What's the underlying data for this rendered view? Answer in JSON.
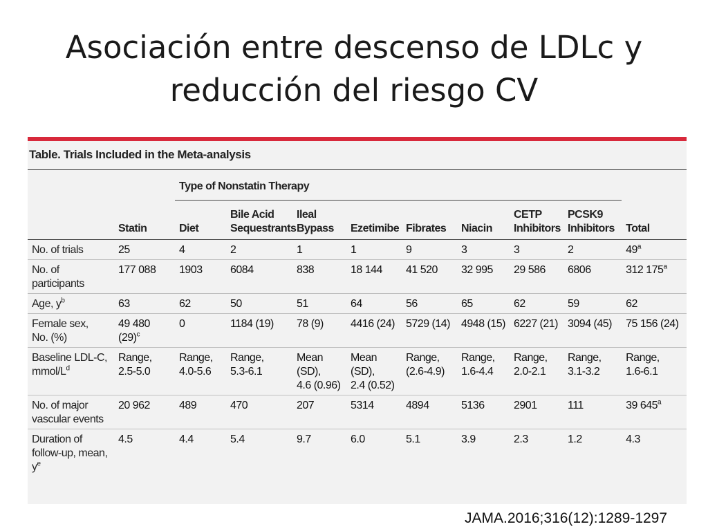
{
  "slide": {
    "title_line1": "Asociación entre descenso de LDLc y",
    "title_line2": "reducción del riesgo CV",
    "source": "JAMA.2016;316(12):1289-1297"
  },
  "table": {
    "caption": "Table. Trials Included in the Meta-analysis",
    "group_header": "Type of Nonstatin Therapy",
    "columns": [
      {
        "line1": "Statin",
        "line2": ""
      },
      {
        "line1": "Diet",
        "line2": ""
      },
      {
        "line1": "Bile Acid",
        "line2": "Sequestrants"
      },
      {
        "line1": "Ileal",
        "line2": "Bypass"
      },
      {
        "line1": "Ezetimibe",
        "line2": ""
      },
      {
        "line1": "Fibrates",
        "line2": ""
      },
      {
        "line1": "Niacin",
        "line2": ""
      },
      {
        "line1": "CETP",
        "line2": "Inhibitors"
      },
      {
        "line1": "PCSK9",
        "line2": "Inhibitors"
      },
      {
        "line1": "Total",
        "line2": ""
      }
    ],
    "rows": [
      {
        "label": [
          {
            "t": "No. of trials"
          }
        ],
        "cells": [
          [
            {
              "t": "25"
            }
          ],
          [
            {
              "t": "4"
            }
          ],
          [
            {
              "t": "2"
            }
          ],
          [
            {
              "t": "1"
            }
          ],
          [
            {
              "t": "1"
            }
          ],
          [
            {
              "t": "9"
            }
          ],
          [
            {
              "t": "3"
            }
          ],
          [
            {
              "t": "3"
            }
          ],
          [
            {
              "t": "2"
            }
          ],
          [
            {
              "t": "49"
            },
            {
              "t": "a",
              "sup": true
            }
          ]
        ]
      },
      {
        "label": [
          {
            "t": "No. of participants"
          }
        ],
        "cells": [
          [
            {
              "t": "177 088"
            }
          ],
          [
            {
              "t": "1903"
            }
          ],
          [
            {
              "t": "6084"
            }
          ],
          [
            {
              "t": "838"
            }
          ],
          [
            {
              "t": "18 144"
            }
          ],
          [
            {
              "t": "41 520"
            }
          ],
          [
            {
              "t": "32 995"
            }
          ],
          [
            {
              "t": "29 586"
            }
          ],
          [
            {
              "t": "6806"
            }
          ],
          [
            {
              "t": "312 175"
            },
            {
              "t": "a",
              "sup": true
            }
          ]
        ]
      },
      {
        "label": [
          {
            "t": "Age, y"
          },
          {
            "t": "b",
            "sup": true
          }
        ],
        "cells": [
          [
            {
              "t": "63"
            }
          ],
          [
            {
              "t": "62"
            }
          ],
          [
            {
              "t": "50"
            }
          ],
          [
            {
              "t": "51"
            }
          ],
          [
            {
              "t": "64"
            }
          ],
          [
            {
              "t": "56"
            }
          ],
          [
            {
              "t": "65"
            }
          ],
          [
            {
              "t": "62"
            }
          ],
          [
            {
              "t": "59"
            }
          ],
          [
            {
              "t": "62"
            }
          ]
        ]
      },
      {
        "label": [
          {
            "t": "Female sex,"
          },
          {
            "br": true
          },
          {
            "t": "No. (%)"
          }
        ],
        "cells": [
          [
            {
              "t": "49 480 (29)"
            },
            {
              "t": "c",
              "sup": true
            }
          ],
          [
            {
              "t": "0"
            }
          ],
          [
            {
              "t": "1184 (19)"
            }
          ],
          [
            {
              "t": "78 (9)"
            }
          ],
          [
            {
              "t": "4416 (24)"
            }
          ],
          [
            {
              "t": "5729 (14)"
            }
          ],
          [
            {
              "t": "4948 (15)"
            }
          ],
          [
            {
              "t": "6227 (21)"
            }
          ],
          [
            {
              "t": "3094 (45)"
            }
          ],
          [
            {
              "t": "75 156 (24)"
            }
          ]
        ]
      },
      {
        "label": [
          {
            "t": "Baseline LDL-C,"
          },
          {
            "br": true
          },
          {
            "t": "mmol/L"
          },
          {
            "t": "d",
            "sup": true
          }
        ],
        "cells": [
          [
            {
              "t": "Range,"
            },
            {
              "br": true
            },
            {
              "t": "2.5-5.0"
            }
          ],
          [
            {
              "t": "Range,"
            },
            {
              "br": true
            },
            {
              "t": "4.0-5.6"
            }
          ],
          [
            {
              "t": "Range,"
            },
            {
              "br": true
            },
            {
              "t": "5.3-6.1"
            }
          ],
          [
            {
              "t": "Mean (SD),"
            },
            {
              "br": true
            },
            {
              "t": "4.6 (0.96)"
            }
          ],
          [
            {
              "t": "Mean (SD),"
            },
            {
              "br": true
            },
            {
              "t": "2.4 (0.52)"
            }
          ],
          [
            {
              "t": "Range,"
            },
            {
              "br": true
            },
            {
              "t": "(2.6-4.9)"
            }
          ],
          [
            {
              "t": "Range,"
            },
            {
              "br": true
            },
            {
              "t": "1.6-4.4"
            }
          ],
          [
            {
              "t": "Range,"
            },
            {
              "br": true
            },
            {
              "t": "2.0-2.1"
            }
          ],
          [
            {
              "t": "Range,"
            },
            {
              "br": true
            },
            {
              "t": "3.1-3.2"
            }
          ],
          [
            {
              "t": "Range,"
            },
            {
              "br": true
            },
            {
              "t": "1.6-6.1"
            }
          ]
        ]
      },
      {
        "label": [
          {
            "t": "No. of major"
          },
          {
            "br": true
          },
          {
            "t": "vascular events"
          }
        ],
        "cells": [
          [
            {
              "t": "20 962"
            }
          ],
          [
            {
              "t": "489"
            }
          ],
          [
            {
              "t": "470"
            }
          ],
          [
            {
              "t": "207"
            }
          ],
          [
            {
              "t": "5314"
            }
          ],
          [
            {
              "t": "4894"
            }
          ],
          [
            {
              "t": "5136"
            }
          ],
          [
            {
              "t": "2901"
            }
          ],
          [
            {
              "t": "111"
            }
          ],
          [
            {
              "t": "39 645"
            },
            {
              "t": "a",
              "sup": true
            }
          ]
        ]
      },
      {
        "label": [
          {
            "t": "Duration of"
          },
          {
            "br": true
          },
          {
            "t": "follow-up, mean,"
          },
          {
            "br": true
          },
          {
            "t": "y"
          },
          {
            "t": "e",
            "sup": true
          }
        ],
        "cells": [
          [
            {
              "t": "4.5"
            }
          ],
          [
            {
              "t": "4.4"
            }
          ],
          [
            {
              "t": "5.4"
            }
          ],
          [
            {
              "t": "9.7"
            }
          ],
          [
            {
              "t": "6.0"
            }
          ],
          [
            {
              "t": "5.1"
            }
          ],
          [
            {
              "t": "3.9"
            }
          ],
          [
            {
              "t": "2.3"
            }
          ],
          [
            {
              "t": "1.2"
            }
          ],
          [
            {
              "t": "4.3"
            }
          ]
        ]
      }
    ]
  }
}
